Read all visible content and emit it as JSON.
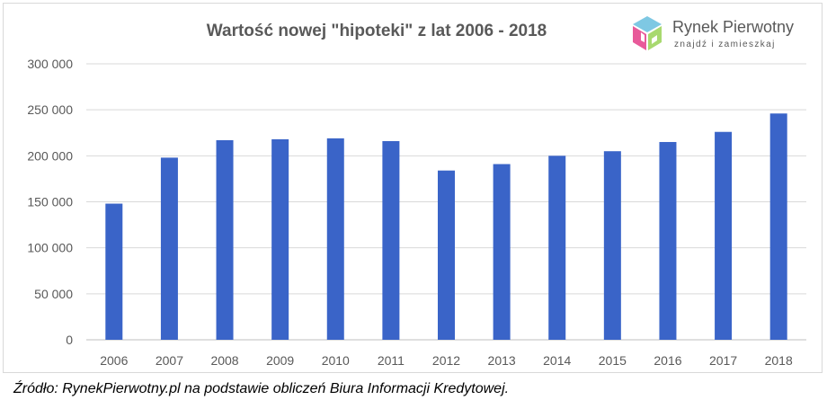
{
  "chart_data": {
    "type": "bar",
    "title": "Wartość nowej \"hipoteki\" z lat 2006 - 2018",
    "categories": [
      "2006",
      "2007",
      "2008",
      "2009",
      "2010",
      "2011",
      "2012",
      "2013",
      "2014",
      "2015",
      "2016",
      "2017",
      "2018"
    ],
    "values": [
      148000,
      198000,
      217000,
      218000,
      219000,
      216000,
      184000,
      191000,
      200000,
      205000,
      215000,
      226000,
      246000
    ],
    "yticks": [
      "0",
      "50 000",
      "100 000",
      "150 000",
      "200 000",
      "250 000",
      "300 000"
    ],
    "ylim": [
      0,
      300000
    ],
    "grid": true,
    "bar_color": "#3a64c8"
  },
  "logo": {
    "name": "Rynek Pierwotny",
    "tagline": "znajdź i zamieszkaj",
    "colors": [
      "#7ec8e3",
      "#a8d96f",
      "#e85a9a",
      "#8a4fb0"
    ]
  },
  "source": "Źródło: RynekPierwotny.pl na podstawie obliczeń Biura Informacji Kredytowej."
}
